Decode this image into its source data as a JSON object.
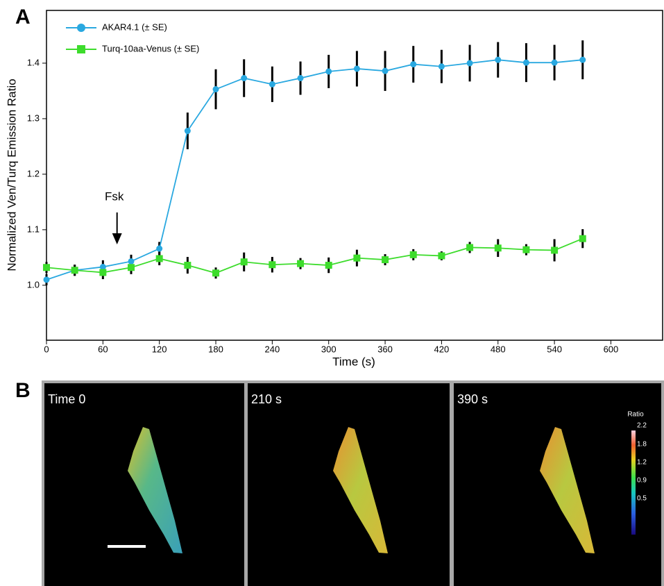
{
  "chart_data": {
    "type": "line",
    "panel_label": "A",
    "xlabel": "Time (s)",
    "ylabel": "Normalized Ven/Turq Emission Ratio",
    "annotation": "Fsk",
    "x": [
      0,
      30,
      60,
      90,
      120,
      150,
      180,
      210,
      240,
      270,
      300,
      330,
      360,
      390,
      420,
      450,
      480,
      510,
      540,
      570
    ],
    "series": [
      {
        "name": "AKAR4.1 (± SE)",
        "color": "#29a8e0",
        "marker": "circle",
        "values": [
          1.01,
          1.027,
          1.033,
          1.043,
          1.066,
          1.278,
          1.353,
          1.373,
          1.362,
          1.373,
          1.385,
          1.39,
          1.386,
          1.398,
          1.394,
          1.4,
          1.406,
          1.401,
          1.401,
          1.406
        ],
        "errors": [
          0.01,
          0.01,
          0.012,
          0.012,
          0.012,
          0.033,
          0.036,
          0.034,
          0.032,
          0.03,
          0.03,
          0.032,
          0.036,
          0.033,
          0.03,
          0.033,
          0.032,
          0.035,
          0.032,
          0.035
        ]
      },
      {
        "name": "Turq-10aa-Venus (± SE)",
        "color": "#3ddc2c",
        "marker": "square",
        "values": [
          1.032,
          1.027,
          1.023,
          1.032,
          1.048,
          1.036,
          1.022,
          1.042,
          1.037,
          1.039,
          1.036,
          1.049,
          1.046,
          1.055,
          1.053,
          1.068,
          1.067,
          1.064,
          1.063,
          1.084
        ],
        "errors": [
          0.01,
          0.01,
          0.012,
          0.012,
          0.012,
          0.015,
          0.01,
          0.017,
          0.014,
          0.01,
          0.014,
          0.015,
          0.01,
          0.01,
          0.008,
          0.01,
          0.016,
          0.01,
          0.02,
          0.017
        ]
      }
    ],
    "xlim": [
      0,
      655
    ],
    "xticks": [
      0,
      60,
      120,
      180,
      240,
      300,
      360,
      420,
      480,
      540,
      600
    ],
    "ylim": [
      0.901,
      1.495
    ],
    "yticks": [
      {
        "value": 1,
        "label": "1.0"
      },
      1.1,
      1.2,
      1.3,
      1.4
    ],
    "legend": "upper left",
    "grid": false
  },
  "figure": {
    "panel_label": "B",
    "panels": [
      {
        "label": "Time 0"
      },
      {
        "label": "210 s"
      },
      {
        "label": "390 s"
      }
    ],
    "colorbar": {
      "title": "Ratio",
      "labels": [
        "2.2",
        "1.8",
        "1.2",
        "0.9",
        "0.5"
      ]
    }
  }
}
